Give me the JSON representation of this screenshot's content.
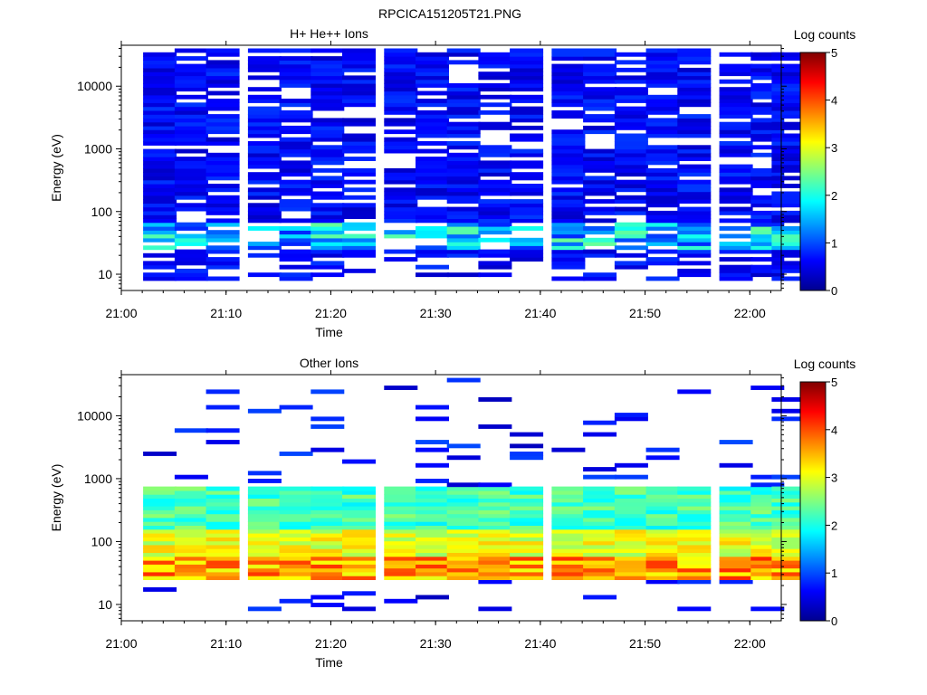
{
  "figure": {
    "title": "RPCICA151205T21.PNG"
  },
  "chart_data": [
    {
      "type": "heatmap",
      "title": "H+ He++ Ions",
      "xlabel": "Time",
      "ylabel": "Energy (eV)",
      "y_scale": "log",
      "ylim": [
        5.5,
        45000
      ],
      "x_range_minutes": [
        "21:00",
        "22:03"
      ],
      "x_ticks": [
        "21:00",
        "21:10",
        "21:20",
        "21:30",
        "21:40",
        "21:50",
        "22:00"
      ],
      "y_ticks": [
        "10",
        "100",
        "1000",
        "10000"
      ],
      "colorbar": {
        "label": "Log counts",
        "range": [
          0,
          5
        ],
        "ticks": [
          "0",
          "1",
          "2",
          "3",
          "4",
          "5"
        ]
      },
      "time_columns": [
        "21:02",
        "21:05",
        "21:08",
        "21:12",
        "21:15",
        "21:18",
        "21:21",
        "21:25",
        "21:28",
        "21:31",
        "21:34",
        "21:37",
        "21:41",
        "21:44",
        "21:47",
        "21:50",
        "21:53",
        "21:57",
        "22:00",
        "22:02"
      ],
      "description_values": "log counts mostly 0.3-1.0 across 10 eV - 40 keV with gaps; peaks near 1.5-2.5 around 30-60 eV"
    },
    {
      "type": "heatmap",
      "title": "Other Ions",
      "xlabel": "Time",
      "ylabel": "Energy (eV)",
      "y_scale": "log",
      "ylim": [
        5.5,
        45000
      ],
      "x_range_minutes": [
        "21:00",
        "22:03"
      ],
      "x_ticks": [
        "21:00",
        "21:10",
        "21:20",
        "21:30",
        "21:40",
        "21:50",
        "22:00"
      ],
      "y_ticks": [
        "10",
        "100",
        "1000",
        "10000"
      ],
      "colorbar": {
        "label": "Log counts",
        "range": [
          0,
          5
        ],
        "ticks": [
          "0",
          "1",
          "2",
          "3",
          "4",
          "5"
        ]
      },
      "time_columns": [
        "21:02",
        "21:05",
        "21:08",
        "21:12",
        "21:15",
        "21:18",
        "21:21",
        "21:25",
        "21:28",
        "21:31",
        "21:34",
        "21:37",
        "21:41",
        "21:44",
        "21:47",
        "21:50",
        "21:53",
        "21:57",
        "22:00",
        "22:02"
      ],
      "description_values": "band 25-800 eV with log counts ~2-2.5 above 100 eV rising to ~3.5-4.2 at 35-60 eV; sparse low counts at 10-20 eV and 2-20 keV"
    }
  ]
}
